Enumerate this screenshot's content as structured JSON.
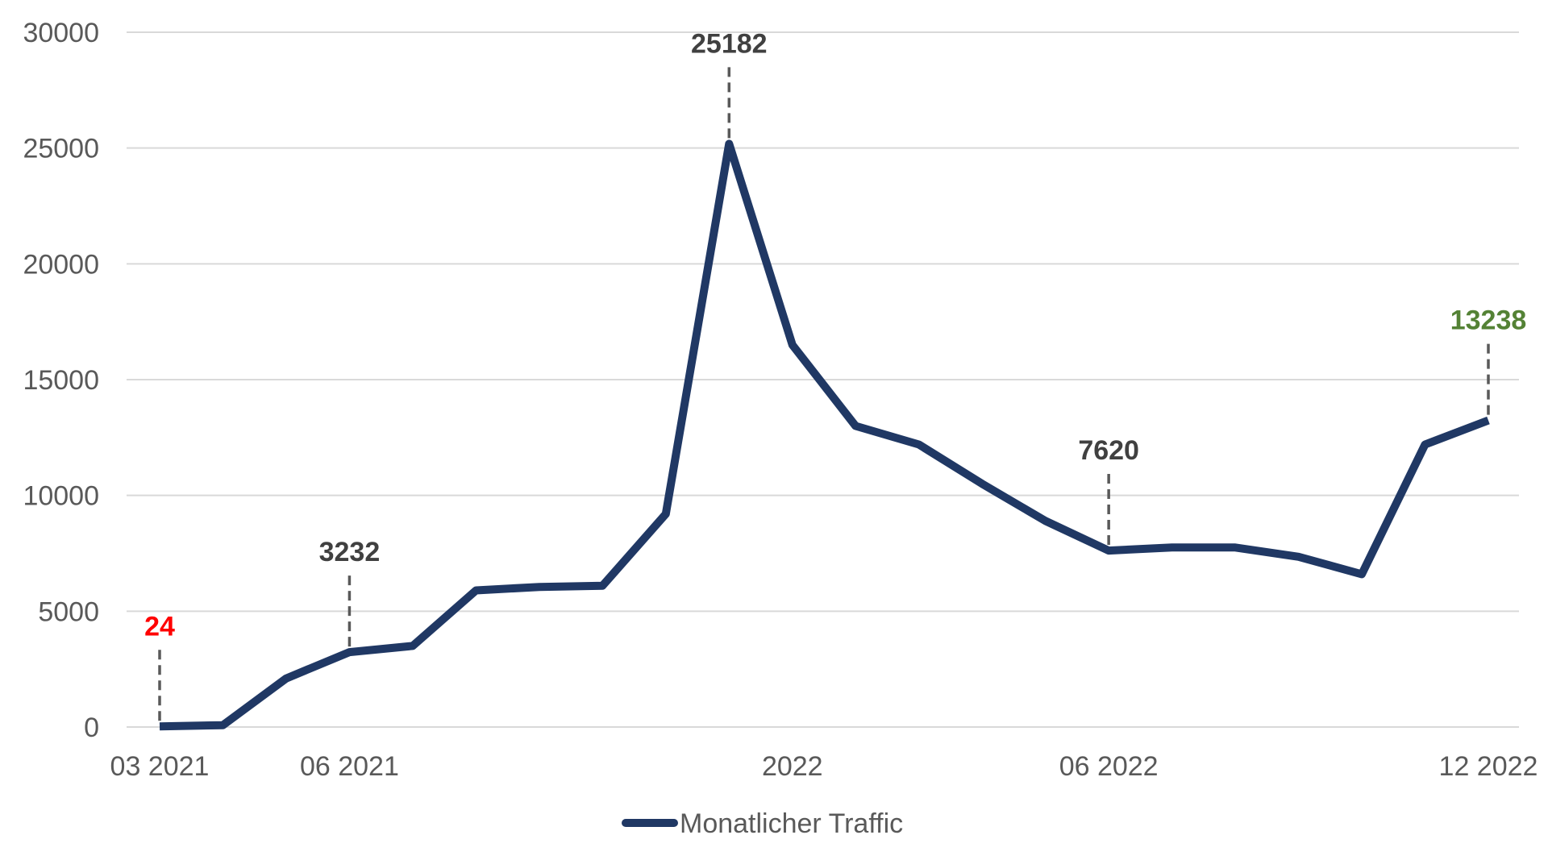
{
  "chart_data": {
    "type": "line",
    "title": "",
    "xlabel": "",
    "ylabel": "",
    "ylim": [
      0,
      30000
    ],
    "yticks": [
      0,
      5000,
      10000,
      15000,
      20000,
      25000,
      30000
    ],
    "grid": true,
    "legend_position": "bottom",
    "x": [
      "03 2021",
      "04 2021",
      "05 2021",
      "06 2021",
      "07 2021",
      "08 2021",
      "09 2021",
      "10 2021",
      "11 2021",
      "12 2021",
      "01 2022",
      "02 2022",
      "03 2022",
      "04 2022",
      "05 2022",
      "06 2022",
      "07 2022",
      "08 2022",
      "09 2022",
      "10 2022",
      "11 2022",
      "12 2022"
    ],
    "x_tick_labels": [
      {
        "index": 0,
        "label": "03 2021"
      },
      {
        "index": 3,
        "label": "06 2021"
      },
      {
        "index": 10,
        "label": "2022"
      },
      {
        "index": 15,
        "label": "06 2022"
      },
      {
        "index": 21,
        "label": "12 2022"
      }
    ],
    "series": [
      {
        "name": "Monatlicher Traffic",
        "color": "#203864",
        "values": [
          24,
          80,
          2100,
          3232,
          3500,
          5900,
          6050,
          6100,
          9200,
          25182,
          16500,
          13000,
          12200,
          10500,
          8900,
          7620,
          7750,
          7750,
          7350,
          6600,
          12200,
          13238
        ]
      }
    ],
    "annotations": [
      {
        "index": 0,
        "label": "24",
        "color": "#ff0000"
      },
      {
        "index": 3,
        "label": "3232",
        "color": "#404040"
      },
      {
        "index": 9,
        "label": "25182",
        "color": "#404040"
      },
      {
        "index": 15,
        "label": "7620",
        "color": "#404040"
      },
      {
        "index": 21,
        "label": "13238",
        "color": "#548235"
      }
    ]
  }
}
